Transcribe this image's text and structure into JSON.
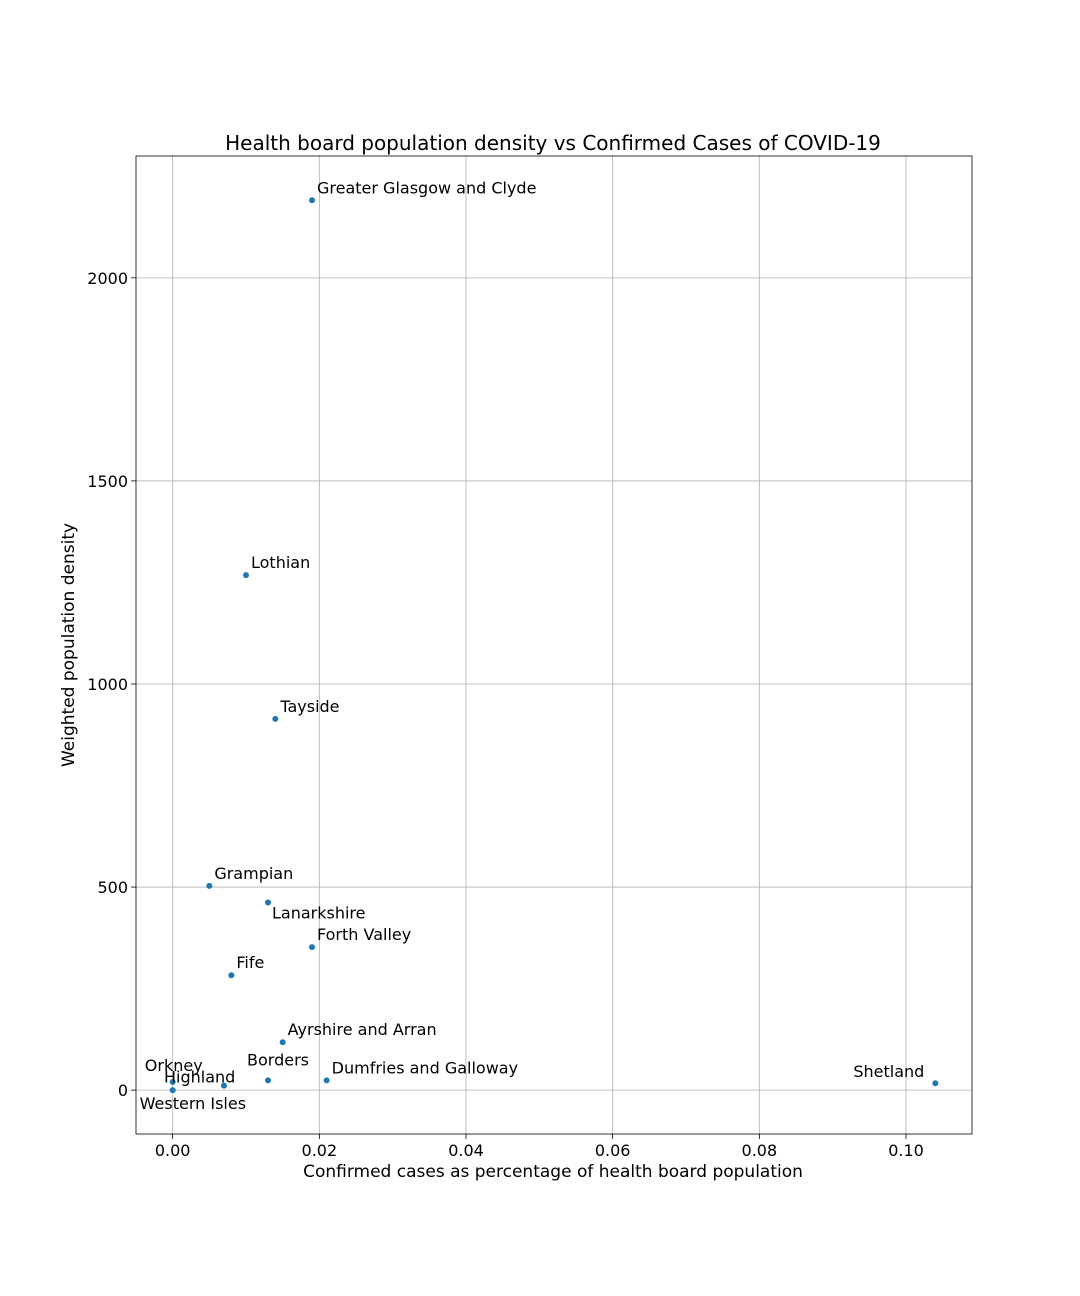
{
  "chart_data": {
    "type": "scatter",
    "title": "Health board population density vs Confirmed Cases of COVID-19",
    "xlabel": "Confirmed cases as percentage of health board population",
    "ylabel": "Weighted population density",
    "xlim": [
      -0.005,
      0.109
    ],
    "ylim": [
      -108,
      2300
    ],
    "xticks": [
      0.0,
      0.02,
      0.04,
      0.06,
      0.08,
      0.1
    ],
    "xtick_labels": [
      "0.00",
      "0.02",
      "0.04",
      "0.06",
      "0.08",
      "0.10"
    ],
    "yticks": [
      0,
      500,
      1000,
      1500,
      2000
    ],
    "ytick_labels": [
      "0",
      "500",
      "1000",
      "1500",
      "2000"
    ],
    "grid": true,
    "marker_color": "#1f77b4",
    "points": [
      {
        "label": "Greater Glasgow and Clyde",
        "x": 0.019,
        "y": 2191,
        "label_pos": "above-right"
      },
      {
        "label": "Lothian",
        "x": 0.01,
        "y": 1268,
        "label_pos": "above-right"
      },
      {
        "label": "Tayside",
        "x": 0.014,
        "y": 914,
        "label_pos": "above-right"
      },
      {
        "label": "Grampian",
        "x": 0.005,
        "y": 503,
        "label_pos": "above-right"
      },
      {
        "label": "Lanarkshire",
        "x": 0.013,
        "y": 462,
        "label_pos": "below-right"
      },
      {
        "label": "Forth Valley",
        "x": 0.019,
        "y": 352,
        "label_pos": "above-right"
      },
      {
        "label": "Fife",
        "x": 0.008,
        "y": 283,
        "label_pos": "above-right"
      },
      {
        "label": "Ayrshire and Arran",
        "x": 0.015,
        "y": 118,
        "label_pos": "above-right"
      },
      {
        "label": "Borders",
        "x": 0.013,
        "y": 24,
        "label_pos": "above-center"
      },
      {
        "label": "Dumfries and Galloway",
        "x": 0.021,
        "y": 24,
        "label_pos": "above-right"
      },
      {
        "label": "Orkney",
        "x": 0.0,
        "y": 20,
        "label_pos": "above-left"
      },
      {
        "label": "Highland",
        "x": 0.007,
        "y": 11,
        "label_pos": "left"
      },
      {
        "label": "Western Isles",
        "x": 0.0,
        "y": 0,
        "label_pos": "below-right"
      },
      {
        "label": "Shetland",
        "x": 0.104,
        "y": 17,
        "label_pos": "above-left"
      }
    ]
  }
}
